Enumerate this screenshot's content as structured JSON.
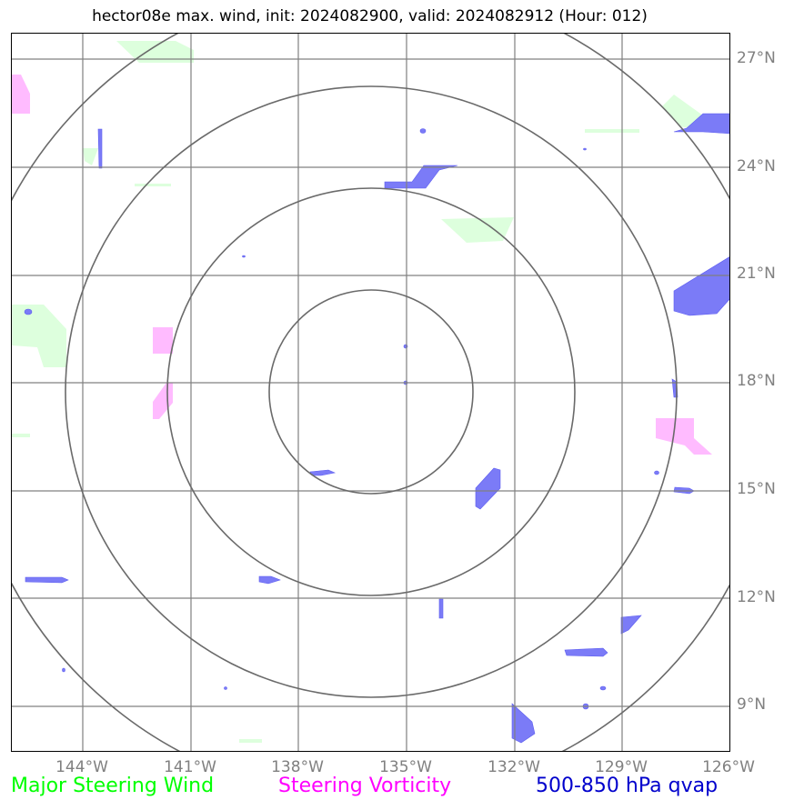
{
  "title": "hector08e max. wind, init: 2024082900, valid: 2024082912 (Hour: 012)",
  "lat_labels": [
    "27°N",
    "24°N",
    "21°N",
    "18°N",
    "15°N",
    "12°N",
    "9°N"
  ],
  "lon_labels": [
    "144°W",
    "141°W",
    "138°W",
    "135°W",
    "132°W",
    "129°W",
    "126°W"
  ],
  "legend": [
    {
      "label": "Major Steering Wind",
      "color": "#00ff00"
    },
    {
      "label": "Steering Vorticity",
      "color": "#ff00ff"
    },
    {
      "label": "500-850 hPa qvap",
      "color": "#0000cc"
    }
  ],
  "colors": {
    "green_fill": "#ddffdd",
    "pink_fill": "#ffbbff",
    "blue_fill": "#7b7bf7",
    "grid": "#808080",
    "rings": "#6a6a6a"
  }
}
